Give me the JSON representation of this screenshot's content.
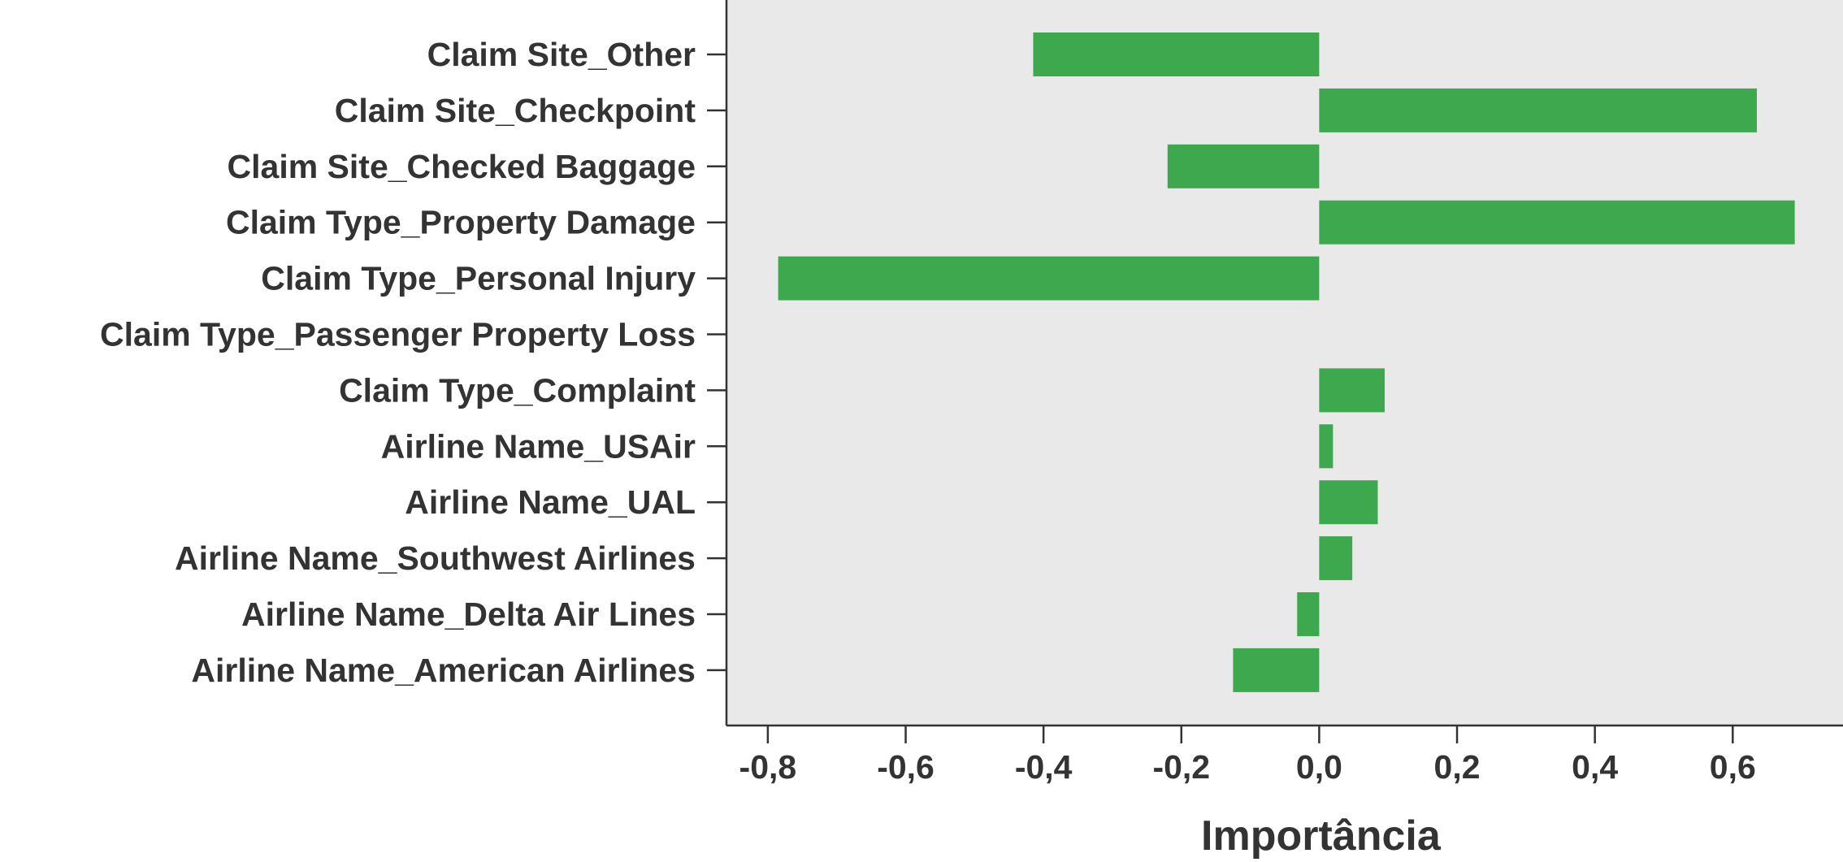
{
  "chart_data": {
    "type": "bar",
    "orientation": "horizontal",
    "xlabel": "Importância",
    "ylabel": "",
    "xlim": [
      -0.86,
      0.76
    ],
    "xticks": [
      -0.8,
      -0.6,
      -0.4,
      -0.2,
      0.0,
      0.2,
      0.4,
      0.6
    ],
    "xtick_labels": [
      "-0,8",
      "-0,6",
      "-0,4",
      "-0,2",
      "0,0",
      "0,2",
      "0,4",
      "0,6"
    ],
    "grid": false,
    "colors": {
      "bar": "#3da84e",
      "plot_background": "#e9e9e9",
      "axis": "#333333",
      "text": "#333333"
    },
    "categories": [
      "Claim Site_Other",
      "Claim Site_Checkpoint",
      "Claim Site_Checked Baggage",
      "Claim Type_Property Damage",
      "Claim Type_Personal Injury",
      "Claim Type_Passenger Property Loss",
      "Claim Type_Complaint",
      "Airline Name_USAir",
      "Airline Name_UAL",
      "Airline Name_Southwest Airlines",
      "Airline Name_Delta Air Lines",
      "Airline Name_American Airlines"
    ],
    "values": [
      -0.415,
      0.635,
      -0.22,
      0.69,
      -0.785,
      0.0,
      0.095,
      0.02,
      0.085,
      0.048,
      -0.032,
      -0.125
    ]
  }
}
